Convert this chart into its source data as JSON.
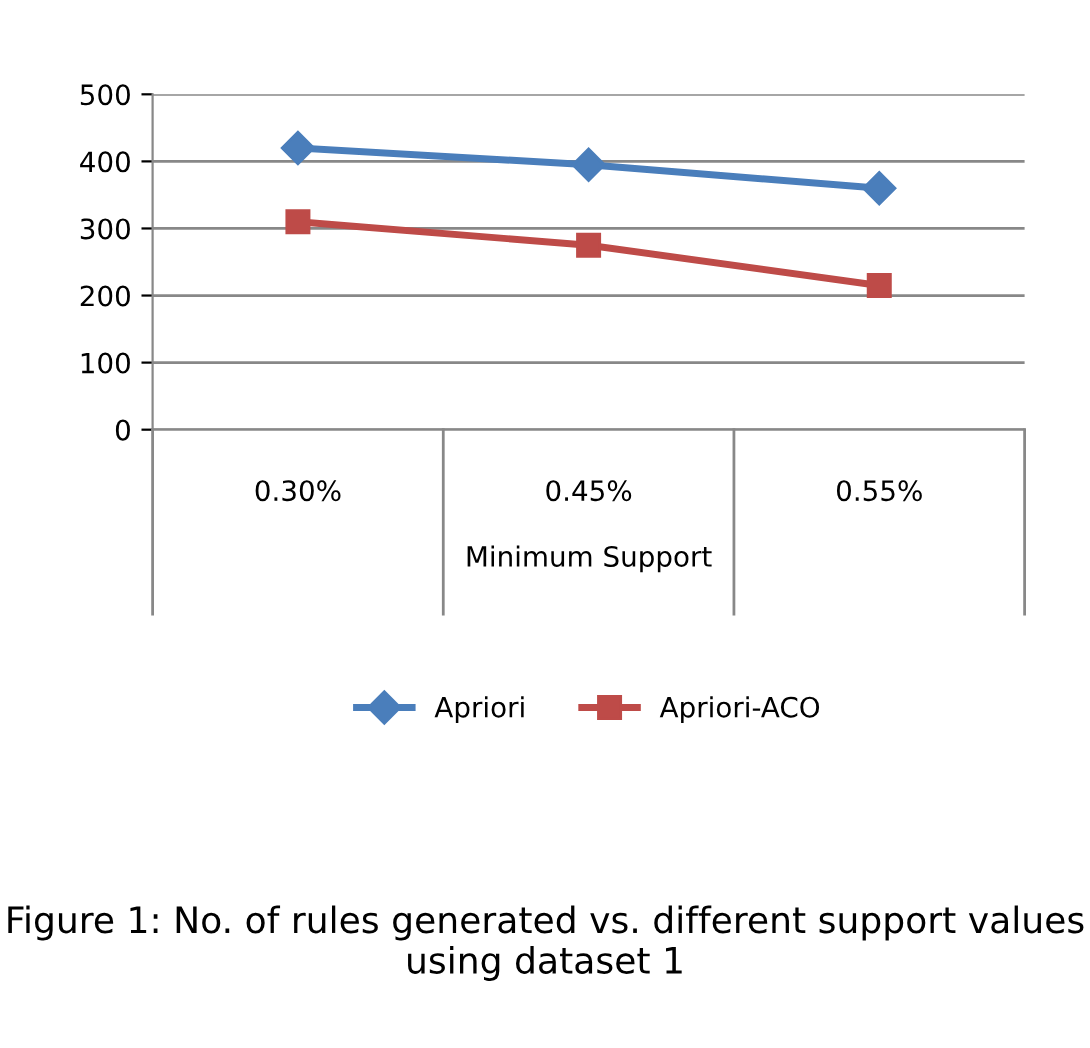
{
  "chart_data": {
    "type": "line",
    "xlabel": "Minimum Support",
    "categories": [
      "0.30%",
      "0.45%",
      "0.55%"
    ],
    "series": [
      {
        "name": "Apriori",
        "color": "#4a7ebb",
        "values": [
          420,
          395,
          360
        ],
        "marker": "diamond"
      },
      {
        "name": "Apriori-ACO",
        "color": "#be4b48",
        "values": [
          310,
          275,
          215
        ],
        "marker": "square"
      }
    ],
    "ylim": [
      0,
      500
    ],
    "yticks": [
      0,
      100,
      200,
      300,
      400,
      500
    ],
    "grid": "y",
    "legend": "bottom",
    "line_style": "solid",
    "annotations": [
      "Figure 1: No. of rules generated vs. different support values using dataset 1"
    ]
  }
}
